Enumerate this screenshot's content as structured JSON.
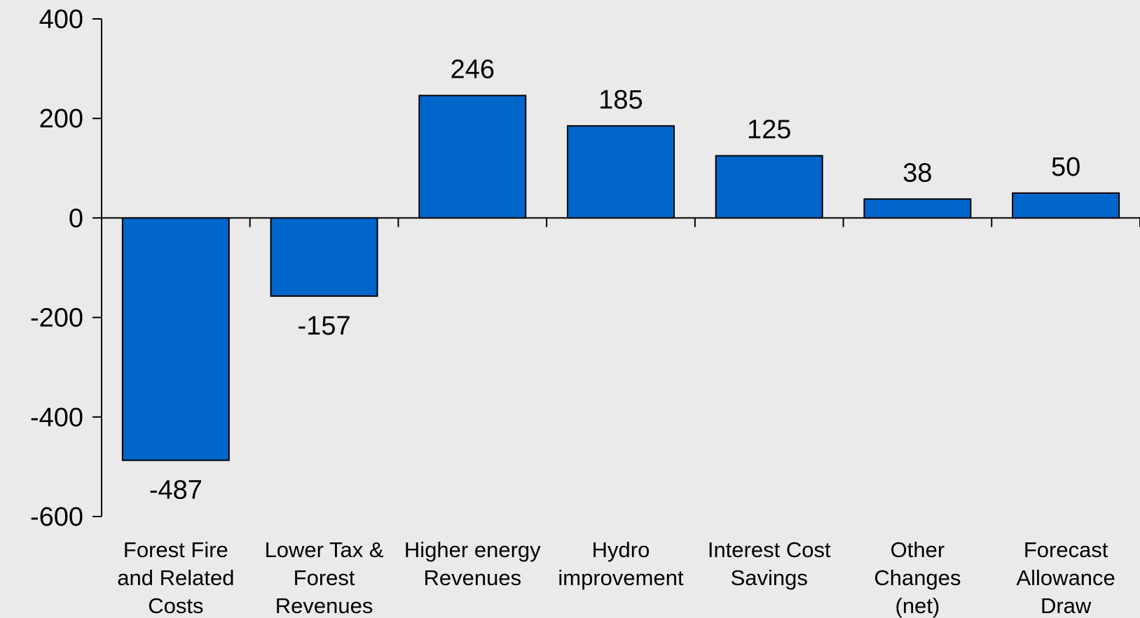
{
  "chart_data": {
    "type": "bar",
    "title": "",
    "xlabel": "",
    "ylabel": "",
    "ylim": [
      -600,
      400
    ],
    "yticks": [
      400,
      200,
      0,
      -200,
      -400,
      -600
    ],
    "categories": [
      [
        "Forest Fire",
        "and Related",
        "Costs"
      ],
      [
        "Lower Tax &",
        "Forest",
        "Revenues"
      ],
      [
        "Higher energy",
        "Revenues"
      ],
      [
        "Hydro",
        "improvement"
      ],
      [
        "Interest Cost",
        "Savings"
      ],
      [
        "Other",
        "Changes",
        "(net)"
      ],
      [
        "Forecast",
        "Allowance",
        "Draw"
      ]
    ],
    "values": [
      -487,
      -157,
      246,
      185,
      125,
      38,
      50
    ],
    "data_labels": [
      "-487",
      "-157",
      "246",
      "185",
      "125",
      "38",
      "50"
    ],
    "grid": false,
    "legend": "none"
  },
  "colors": {
    "bar_fill": "#0066cc",
    "bar_stroke": "#000000",
    "axis": "#000000",
    "background": "#eaeaea"
  }
}
